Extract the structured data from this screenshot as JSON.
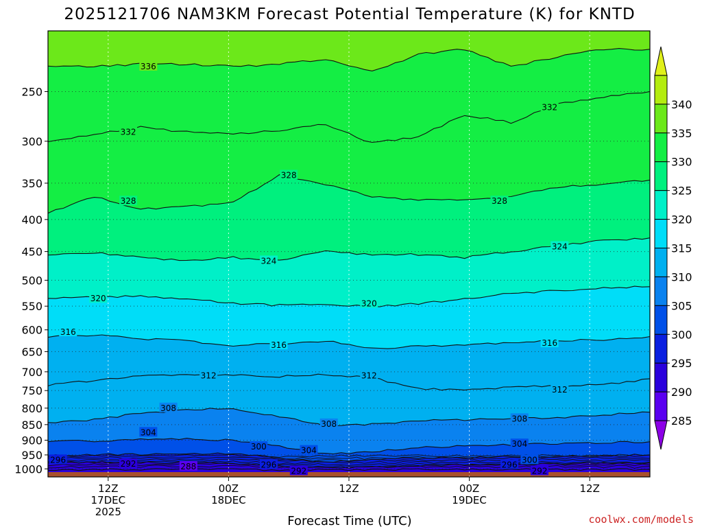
{
  "chart_data": {
    "type": "heatmap",
    "title": "2025121706 NAM3KM Forecast Potential Temperature (K) for KNTD",
    "xlabel": "Forecast Time (UTC)",
    "ylabel": "",
    "credit": "coolwx.com/models",
    "y_axis": {
      "scale": "log-pressure",
      "reversed": true,
      "range": [
        200,
        1030
      ],
      "ticks": [
        250,
        300,
        350,
        400,
        450,
        500,
        550,
        600,
        650,
        700,
        750,
        800,
        850,
        900,
        950,
        1000
      ]
    },
    "x_axis": {
      "range_hours": [
        6,
        66
      ],
      "ticks": [
        {
          "hour": 12,
          "lines": [
            "12Z",
            "17DEC",
            "2025"
          ]
        },
        {
          "hour": 24,
          "lines": [
            "00Z",
            "18DEC"
          ]
        },
        {
          "hour": 36,
          "lines": [
            "12Z"
          ]
        },
        {
          "hour": 48,
          "lines": [
            "00Z",
            "19DEC"
          ]
        },
        {
          "hour": 60,
          "lines": [
            "12Z"
          ]
        }
      ]
    },
    "colorbar": {
      "levels": [
        285,
        290,
        295,
        300,
        305,
        310,
        315,
        320,
        325,
        330,
        335,
        340
      ],
      "colors": [
        "#8c00e6",
        "#5a00f0",
        "#2a00dc",
        "#0a1fe0",
        "#0050e8",
        "#0a82ef",
        "#00b0f0",
        "#00ddf8",
        "#00f0c8",
        "#00f07e",
        "#14ee44",
        "#6ce81a",
        "#b4ec10",
        "#e0f01a"
      ]
    },
    "contours": [
      {
        "level": 292,
        "p": [
          1003,
          1003,
          1002,
          1002,
          1002,
          1004,
          1004,
          1003,
          1003,
          1003,
          1002,
          1002,
          1002,
          1002
        ]
      },
      {
        "level": 296,
        "p": [
          975,
          976,
          977,
          978,
          980,
          990,
          997,
          993,
          988,
          985,
          983,
          982,
          980,
          978
        ]
      },
      {
        "level": 300,
        "p": [
          952,
          950,
          948,
          947,
          946,
          960,
          975,
          968,
          960,
          958,
          957,
          955,
          952,
          950
        ]
      },
      {
        "level": 304,
        "p": [
          905,
          902,
          898,
          896,
          900,
          920,
          948,
          938,
          925,
          918,
          915,
          912,
          908,
          905
        ]
      },
      {
        "level": 308,
        "p": [
          845,
          835,
          815,
          805,
          800,
          825,
          855,
          848,
          838,
          835,
          832,
          828,
          820,
          812
        ]
      },
      {
        "level": 312,
        "p": [
          735,
          722,
          712,
          706,
          708,
          712,
          708,
          715,
          745,
          748,
          740,
          738,
          735,
          718
        ]
      },
      {
        "level": 316,
        "p": [
          615,
          612,
          620,
          625,
          635,
          632,
          625,
          642,
          638,
          635,
          628,
          625,
          622,
          615
        ]
      },
      {
        "level": 320,
        "p": [
          535,
          532,
          530,
          535,
          545,
          548,
          545,
          552,
          545,
          535,
          525,
          520,
          515,
          512
        ]
      },
      {
        "level": 324,
        "p": [
          455,
          452,
          460,
          465,
          460,
          465,
          450,
          455,
          455,
          460,
          450,
          440,
          432,
          428
        ]
      },
      {
        "level": 328,
        "p": [
          390,
          368,
          385,
          382,
          375,
          340,
          352,
          368,
          372,
          372,
          368,
          355,
          352,
          346
        ]
      },
      {
        "level": 332,
        "p": [
          300,
          292,
          285,
          290,
          292,
          288,
          282,
          302,
          295,
          272,
          280,
          262,
          255,
          250
        ]
      },
      {
        "level": 336,
        "p": [
          228,
          228,
          226,
          226,
          228,
          226,
          222,
          232,
          218,
          214,
          228,
          220,
          214,
          214
        ]
      }
    ],
    "contour_labels": [
      {
        "text": "336",
        "hour": 16,
        "p": 228
      },
      {
        "text": "332",
        "hour": 14,
        "p": 290
      },
      {
        "text": "332",
        "hour": 56,
        "p": 265
      },
      {
        "text": "328",
        "hour": 14,
        "p": 374
      },
      {
        "text": "328",
        "hour": 30,
        "p": 340
      },
      {
        "text": "328",
        "hour": 51,
        "p": 374
      },
      {
        "text": "324",
        "hour": 28,
        "p": 466
      },
      {
        "text": "324",
        "hour": 57,
        "p": 442
      },
      {
        "text": "320",
        "hour": 11,
        "p": 535
      },
      {
        "text": "320",
        "hour": 38,
        "p": 545
      },
      {
        "text": "316",
        "hour": 8,
        "p": 605
      },
      {
        "text": "316",
        "hour": 29,
        "p": 635
      },
      {
        "text": "316",
        "hour": 56,
        "p": 630
      },
      {
        "text": "312",
        "hour": 22,
        "p": 710
      },
      {
        "text": "312",
        "hour": 38,
        "p": 710
      },
      {
        "text": "312",
        "hour": 57,
        "p": 748
      },
      {
        "text": "308",
        "hour": 18,
        "p": 800
      },
      {
        "text": "308",
        "hour": 34,
        "p": 848
      },
      {
        "text": "308",
        "hour": 53,
        "p": 832
      },
      {
        "text": "304",
        "hour": 16,
        "p": 875
      },
      {
        "text": "304",
        "hour": 32,
        "p": 935
      },
      {
        "text": "304",
        "hour": 53,
        "p": 913
      },
      {
        "text": "300",
        "hour": 27,
        "p": 922
      },
      {
        "text": "300",
        "hour": 54,
        "p": 968
      },
      {
        "text": "296",
        "hour": 7,
        "p": 968
      },
      {
        "text": "296",
        "hour": 28,
        "p": 985
      },
      {
        "text": "296",
        "hour": 52,
        "p": 985
      },
      {
        "text": "292",
        "hour": 14,
        "p": 982
      },
      {
        "text": "292",
        "hour": 31,
        "p": 1008
      },
      {
        "text": "292",
        "hour": 55,
        "p": 1008
      },
      {
        "text": "288",
        "hour": 20,
        "p": 992
      }
    ],
    "ground_color": "#a8502c"
  }
}
